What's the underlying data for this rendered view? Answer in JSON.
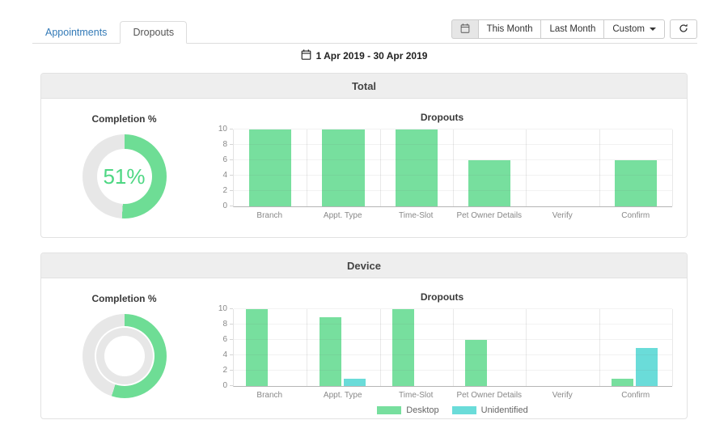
{
  "tabs": [
    {
      "label": "Appointments",
      "active": false
    },
    {
      "label": "Dropouts",
      "active": true
    }
  ],
  "toolbar": {
    "calendar_icon": "calendar-icon",
    "this_month": "This Month",
    "last_month": "Last Month",
    "custom": "Custom",
    "refresh_icon": "refresh-icon"
  },
  "date_range": {
    "icon": "calendar-icon",
    "text": "1 Apr 2019 - 30 Apr 2019"
  },
  "panels": [
    {
      "title": "Total"
    },
    {
      "title": "Device"
    }
  ],
  "colors": {
    "bar_green": "#77df9e",
    "bar_teal": "#6adcd9",
    "donut_green": "#6edd95",
    "donut_empty": "#e7e7e7",
    "center_text": "#4ed783",
    "link_blue": "#337ab7"
  },
  "chart_data": [
    {
      "type": "donut",
      "panel": "Total",
      "title": "Completion %",
      "rings": [
        {
          "name": "Total",
          "percent": 51,
          "color": "#6edd95"
        }
      ],
      "center_label": "51%"
    },
    {
      "type": "bar",
      "panel": "Total",
      "title": "Dropouts",
      "categories": [
        "Branch",
        "Appt. Type",
        "Time-Slot",
        "Pet Owner Details",
        "Verify",
        "Confirm"
      ],
      "series": [
        {
          "name": "Total",
          "color": "#77df9e",
          "values": [
            10,
            10,
            10,
            6,
            0,
            6
          ]
        }
      ],
      "ylim": [
        0,
        10
      ],
      "yticks": [
        0,
        2,
        4,
        6,
        8,
        10
      ],
      "grid": true,
      "legend": false
    },
    {
      "type": "donut",
      "panel": "Device",
      "title": "Completion %",
      "rings": [
        {
          "name": "Desktop",
          "percent": 55,
          "color": "#6edd95"
        },
        {
          "name": "Unidentified",
          "percent": 0,
          "color": "#6adcd9"
        }
      ],
      "center_label": ""
    },
    {
      "type": "bar",
      "panel": "Device",
      "title": "Dropouts",
      "categories": [
        "Branch",
        "Appt. Type",
        "Time-Slot",
        "Pet Owner Details",
        "Verify",
        "Confirm"
      ],
      "series": [
        {
          "name": "Desktop",
          "color": "#77df9e",
          "values": [
            10,
            9,
            10,
            6,
            0,
            1
          ]
        },
        {
          "name": "Unidentified",
          "color": "#6adcd9",
          "values": [
            0,
            1,
            0,
            0,
            0,
            5
          ]
        }
      ],
      "ylim": [
        0,
        10
      ],
      "yticks": [
        0,
        2,
        4,
        6,
        8,
        10
      ],
      "grid": true,
      "legend": true
    }
  ]
}
